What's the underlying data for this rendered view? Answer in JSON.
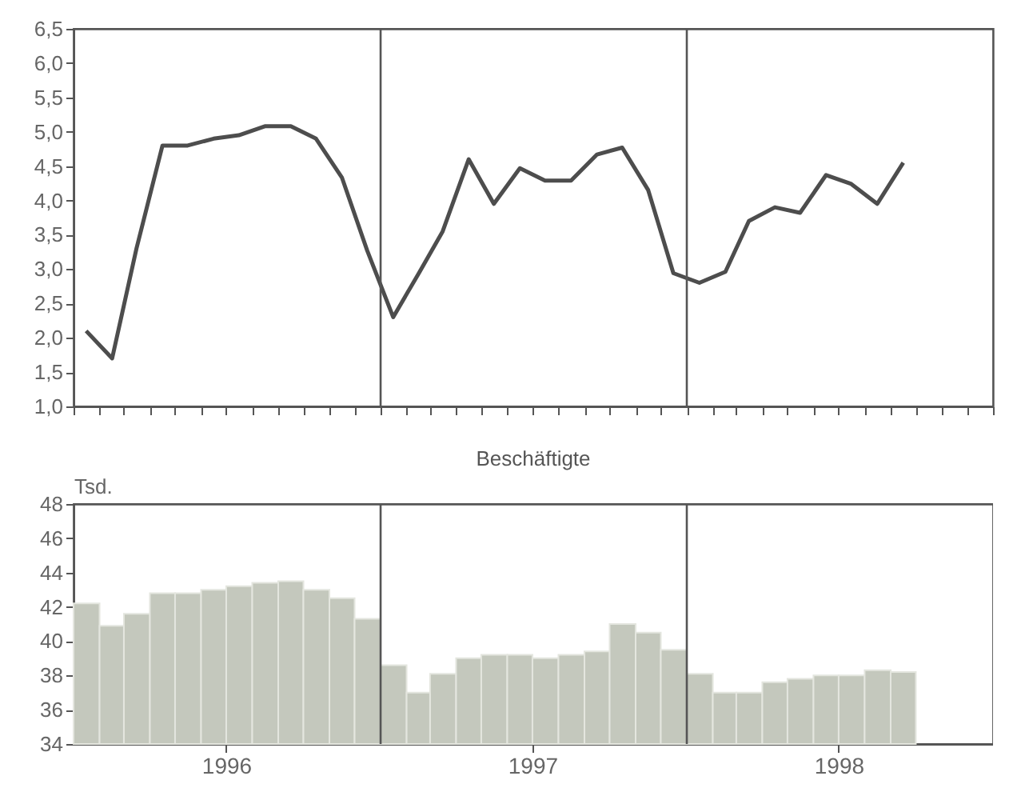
{
  "chart_data": [
    {
      "type": "line",
      "x": [
        "1996-01-16",
        "1996-02-16",
        "1996-03-16",
        "1996-04-16",
        "1996-05-16",
        "1996-06-16",
        "1996-07-16",
        "1996-08-16",
        "1996-09-16",
        "1996-10-16",
        "1996-11-16",
        "1996-12-16",
        "1997-01-16",
        "1997-02-16",
        "1997-03-16",
        "1997-04-16",
        "1997-05-16",
        "1997-06-16",
        "1997-07-16",
        "1997-08-16",
        "1997-09-16",
        "1997-10-16",
        "1997-11-16",
        "1997-12-16",
        "1998-01-16",
        "1998-02-16",
        "1998-03-16",
        "1998-04-16",
        "1998-05-16",
        "1998-06-16",
        "1998-07-16",
        "1998-08-16",
        "1998-09-16"
      ],
      "series": [
        {
          "color": "#4d4d4d",
          "values": [
            2.1,
            1.7,
            3.3,
            4.8,
            4.8,
            4.9,
            4.95,
            5.08,
            5.08,
            4.9,
            4.33,
            3.27,
            2.3,
            2.95,
            3.55,
            4.6,
            3.95,
            4.47,
            4.29,
            4.29,
            4.67,
            4.77,
            4.15,
            2.94,
            2.8,
            2.96,
            3.7,
            3.9,
            3.82,
            4.37,
            4.24,
            3.95,
            4.55
          ]
        }
      ],
      "xlim": [
        "1996-01",
        "1999-01"
      ],
      "xticks": [
        {
          "value": "1996-01",
          "label": null
        },
        {
          "value": "1996-02",
          "label": null
        },
        {
          "value": "1996-03",
          "label": null
        },
        {
          "value": "1996-04",
          "label": null
        },
        {
          "value": "1996-05",
          "label": null
        },
        {
          "value": "1996-06",
          "label": null
        },
        {
          "value": "1996-07",
          "label": null
        },
        {
          "value": "1996-08",
          "label": null
        },
        {
          "value": "1996-09",
          "label": null
        },
        {
          "value": "1996-10",
          "label": null
        },
        {
          "value": "1996-11",
          "label": null
        },
        {
          "value": "1996-12",
          "label": null
        },
        {
          "value": "1997-01",
          "label": null
        },
        {
          "value": "1997-02",
          "label": null
        },
        {
          "value": "1997-03",
          "label": null
        },
        {
          "value": "1997-04",
          "label": null
        },
        {
          "value": "1997-05",
          "label": null
        },
        {
          "value": "1997-06",
          "label": null
        },
        {
          "value": "1997-07",
          "label": null
        },
        {
          "value": "1997-08",
          "label": null
        },
        {
          "value": "1997-09",
          "label": null
        },
        {
          "value": "1997-10",
          "label": null
        },
        {
          "value": "1997-11",
          "label": null
        },
        {
          "value": "1997-12",
          "label": null
        },
        {
          "value": "1998-01",
          "label": null
        },
        {
          "value": "1998-02",
          "label": null
        },
        {
          "value": "1998-03",
          "label": null
        },
        {
          "value": "1998-04",
          "label": null
        },
        {
          "value": "1998-05",
          "label": null
        },
        {
          "value": "1998-06",
          "label": null
        },
        {
          "value": "1998-07",
          "label": null
        },
        {
          "value": "1998-08",
          "label": null
        },
        {
          "value": "1998-09",
          "label": null
        },
        {
          "value": "1998-10",
          "label": null
        },
        {
          "value": "1998-11",
          "label": null
        },
        {
          "value": "1998-12",
          "label": null
        },
        {
          "value": "1999-01",
          "label": null
        }
      ],
      "ylim": [
        1.0,
        6.5
      ],
      "yticks": [
        {
          "value": 1.0,
          "label": "1,0"
        },
        {
          "value": 1.5,
          "label": "1,5"
        },
        {
          "value": 2.0,
          "label": "2,0"
        },
        {
          "value": 2.5,
          "label": "2,5"
        },
        {
          "value": 3.0,
          "label": "3,0"
        },
        {
          "value": 3.5,
          "label": "3,5"
        },
        {
          "value": 4.0,
          "label": "4,0"
        },
        {
          "value": 4.5,
          "label": "4,5"
        },
        {
          "value": 5.0,
          "label": "5,0"
        },
        {
          "value": 5.5,
          "label": "5,5"
        },
        {
          "value": 6.0,
          "label": "6,0"
        },
        {
          "value": 6.5,
          "label": "6,5"
        }
      ],
      "tick_labels": "y",
      "ref_lines": [
        {
          "axis": "x",
          "value": "1997-01",
          "color": "#555555"
        },
        {
          "axis": "x",
          "value": "1998-01",
          "color": "#555555"
        }
      ]
    },
    {
      "type": "bar",
      "title": "Beschäftigte",
      "ylabel": "Tsd.",
      "x": [
        "1996-01-16",
        "1996-02-16",
        "1996-03-16",
        "1996-04-16",
        "1996-05-16",
        "1996-06-16",
        "1996-07-16",
        "1996-08-16",
        "1996-09-16",
        "1996-10-16",
        "1996-11-16",
        "1996-12-16",
        "1997-01-16",
        "1997-02-16",
        "1997-03-16",
        "1997-04-16",
        "1997-05-16",
        "1997-06-16",
        "1997-07-16",
        "1997-08-16",
        "1997-09-16",
        "1997-10-16",
        "1997-11-16",
        "1997-12-16",
        "1998-01-16",
        "1998-02-16",
        "1998-03-16",
        "1998-04-16",
        "1998-05-16",
        "1998-06-16",
        "1998-07-16",
        "1998-08-16",
        "1998-09-16"
      ],
      "series": [
        {
          "color": "#c4c8bd",
          "values": [
            42.2,
            40.9,
            41.6,
            42.8,
            42.8,
            43.0,
            43.2,
            43.4,
            43.5,
            43.0,
            42.5,
            41.3,
            38.6,
            37.0,
            38.1,
            39.0,
            39.2,
            39.2,
            39.0,
            39.2,
            39.4,
            41.0,
            40.5,
            39.5,
            38.1,
            37.0,
            37.0,
            37.6,
            37.8,
            38.0,
            38.0,
            38.3,
            38.2
          ]
        }
      ],
      "xlim": [
        "1996-01",
        "1999-01"
      ],
      "xticks": [
        {
          "value": "1996-07",
          "label": "1996"
        },
        {
          "value": "1997-07",
          "label": "1997"
        },
        {
          "value": "1998-07",
          "label": "1998"
        }
      ],
      "ylim": [
        34,
        48
      ],
      "yticks": [
        34,
        36,
        38,
        40,
        42,
        44,
        46,
        48
      ],
      "ref_lines": [
        {
          "axis": "x",
          "value": "1997-01",
          "color": "#555555"
        },
        {
          "axis": "x",
          "value": "1998-01",
          "color": "#555555"
        }
      ]
    }
  ]
}
